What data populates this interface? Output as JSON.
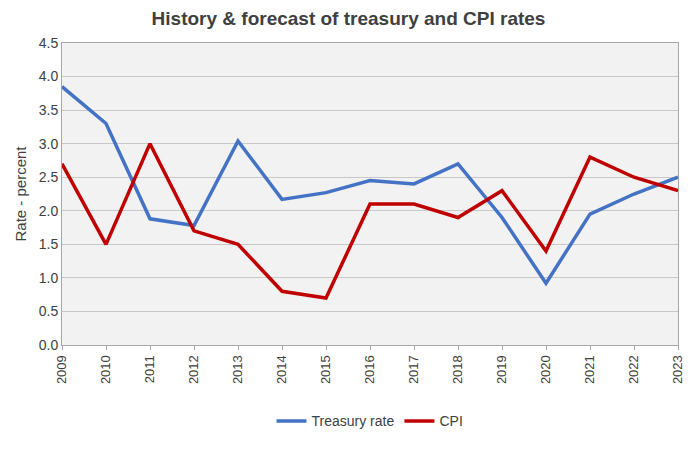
{
  "chart_data": {
    "type": "line",
    "title": "History & forecast of treasury and CPI rates",
    "y_label": "Rate - percent",
    "categories": [
      "2009",
      "2010",
      "2011",
      "2012",
      "2013",
      "2014",
      "2015",
      "2016",
      "2017",
      "2018",
      "2019",
      "2020",
      "2021",
      "2022",
      "2023"
    ],
    "series": [
      {
        "name": "Treasury rate",
        "color": "#4472c4",
        "values": [
          3.85,
          3.3,
          1.88,
          1.78,
          3.04,
          2.17,
          2.27,
          2.45,
          2.4,
          2.7,
          1.9,
          0.92,
          1.95,
          2.25,
          2.5
        ]
      },
      {
        "name": "CPI",
        "color": "#c00000",
        "values": [
          2.7,
          1.5,
          3.0,
          1.7,
          1.5,
          0.8,
          0.7,
          2.1,
          2.1,
          1.9,
          2.3,
          1.4,
          2.8,
          2.5,
          2.3
        ]
      }
    ],
    "ylim": [
      0,
      4.5
    ],
    "yticks": [
      {
        "value": 0,
        "label": "0.0"
      },
      {
        "value": 0.5,
        "label": "0.5"
      },
      {
        "value": 1,
        "label": "1.0"
      },
      {
        "value": 1.5,
        "label": "1.5"
      },
      {
        "value": 2,
        "label": "2.0"
      },
      {
        "value": 2.5,
        "label": "2.5"
      },
      {
        "value": 3,
        "label": "3.0"
      },
      {
        "value": 3.5,
        "label": "3.5"
      },
      {
        "value": 4,
        "label": "4.0"
      },
      {
        "value": 4.5,
        "label": "4.5"
      }
    ],
    "grid": true,
    "legend": "bottom"
  }
}
